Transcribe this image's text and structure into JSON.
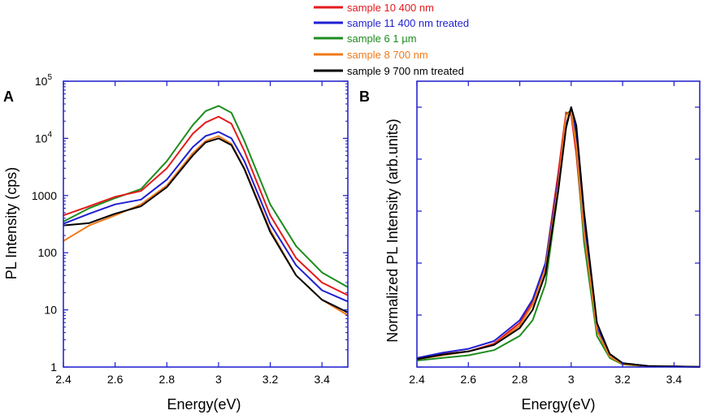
{
  "legend": {
    "entries": [
      {
        "label": "sample 10 400 nm",
        "color": "#e41a1c"
      },
      {
        "label": "sample 11 400 nm treated",
        "color": "#1f1fd2"
      },
      {
        "label": "sample 6 1 µm",
        "color": "#1e8c1e"
      },
      {
        "label": "sample 8 700 nm",
        "color": "#f07a1a"
      },
      {
        "label": "sample 9 700 nm treated",
        "color": "#000000"
      }
    ]
  },
  "colors": {
    "axis_frame": "#1a1acc",
    "text": "#000000"
  },
  "chart_data": [
    {
      "panel_label": "A",
      "type": "line",
      "xlabel": "Energy(eV)",
      "ylabel": "PL Intensity (cps)",
      "xlim": [
        2.4,
        3.5
      ],
      "ylim": [
        1,
        100000
      ],
      "yscale": "log",
      "x_ticks": [
        "2.4",
        "2.6",
        "2.8",
        "3",
        "3.2",
        "3.4"
      ],
      "y_ticks": [
        {
          "value": 1,
          "base": "1",
          "exp": ""
        },
        {
          "value": 10,
          "base": "10",
          "exp": ""
        },
        {
          "value": 100,
          "base": "100",
          "exp": ""
        },
        {
          "value": 1000,
          "base": "1000",
          "exp": ""
        },
        {
          "value": 10000,
          "base": "10",
          "exp": "4"
        },
        {
          "value": 100000,
          "base": "10",
          "exp": "5"
        }
      ],
      "x": [
        2.4,
        2.5,
        2.6,
        2.7,
        2.8,
        2.9,
        2.95,
        3.0,
        3.05,
        3.1,
        3.2,
        3.3,
        3.4,
        3.5
      ],
      "series": [
        {
          "name": "sample 6 1 µm",
          "values": [
            350,
            600,
            900,
            1300,
            4000,
            17000,
            30000,
            37000,
            28000,
            9000,
            700,
            130,
            45,
            25
          ]
        },
        {
          "name": "sample 10 400 nm",
          "values": [
            450,
            650,
            950,
            1200,
            3000,
            12000,
            19000,
            24000,
            18000,
            6000,
            450,
            80,
            30,
            18
          ]
        },
        {
          "name": "sample 11 400 nm treated",
          "values": [
            320,
            480,
            700,
            850,
            1900,
            7000,
            11000,
            13000,
            10000,
            4000,
            320,
            60,
            22,
            14
          ]
        },
        {
          "name": "sample 8 700 nm",
          "values": [
            160,
            300,
            450,
            700,
            1500,
            5500,
            9000,
            11000,
            8000,
            3000,
            250,
            40,
            15,
            8
          ]
        },
        {
          "name": "sample 9 700 nm treated",
          "values": [
            300,
            330,
            480,
            650,
            1400,
            5000,
            8500,
            10000,
            7600,
            2900,
            230,
            40,
            15,
            9
          ]
        }
      ]
    },
    {
      "panel_label": "B",
      "type": "line",
      "xlabel": "Energy(eV)",
      "ylabel": "Normalized PL Intensity (arb.units)",
      "xlim": [
        2.4,
        3.5
      ],
      "ylim": [
        0,
        1.1
      ],
      "yscale": "linear",
      "x_ticks": [
        "2.4",
        "2.6",
        "2.8",
        "3",
        "3.2",
        "3.4"
      ],
      "x": [
        2.4,
        2.5,
        2.6,
        2.7,
        2.8,
        2.85,
        2.9,
        2.95,
        2.98,
        3.0,
        3.02,
        3.05,
        3.1,
        3.15,
        3.2,
        3.3,
        3.5
      ],
      "series": [
        {
          "name": "sample 10 400 nm",
          "values": [
            0.03,
            0.05,
            0.06,
            0.09,
            0.17,
            0.25,
            0.4,
            0.75,
            0.98,
            0.97,
            0.82,
            0.5,
            0.14,
            0.04,
            0.01,
            0.003,
            0.001
          ]
        },
        {
          "name": "sample 11 400 nm treated",
          "values": [
            0.035,
            0.055,
            0.07,
            0.1,
            0.18,
            0.26,
            0.4,
            0.72,
            0.93,
            1.0,
            0.9,
            0.55,
            0.15,
            0.05,
            0.015,
            0.004,
            0.001
          ]
        },
        {
          "name": "sample 6 1 µm",
          "values": [
            0.025,
            0.035,
            0.045,
            0.065,
            0.12,
            0.18,
            0.32,
            0.68,
            0.97,
            0.99,
            0.85,
            0.48,
            0.12,
            0.035,
            0.01,
            0.002,
            0.001
          ]
        },
        {
          "name": "sample 8 700 nm",
          "values": [
            0.03,
            0.045,
            0.06,
            0.085,
            0.16,
            0.24,
            0.38,
            0.7,
            0.97,
            0.98,
            0.85,
            0.52,
            0.14,
            0.04,
            0.012,
            0.003,
            0.001
          ]
        },
        {
          "name": "sample 9 700 nm treated",
          "values": [
            0.03,
            0.048,
            0.06,
            0.085,
            0.15,
            0.22,
            0.36,
            0.68,
            0.92,
            1.0,
            0.93,
            0.6,
            0.17,
            0.05,
            0.015,
            0.004,
            0.001
          ]
        }
      ]
    }
  ]
}
